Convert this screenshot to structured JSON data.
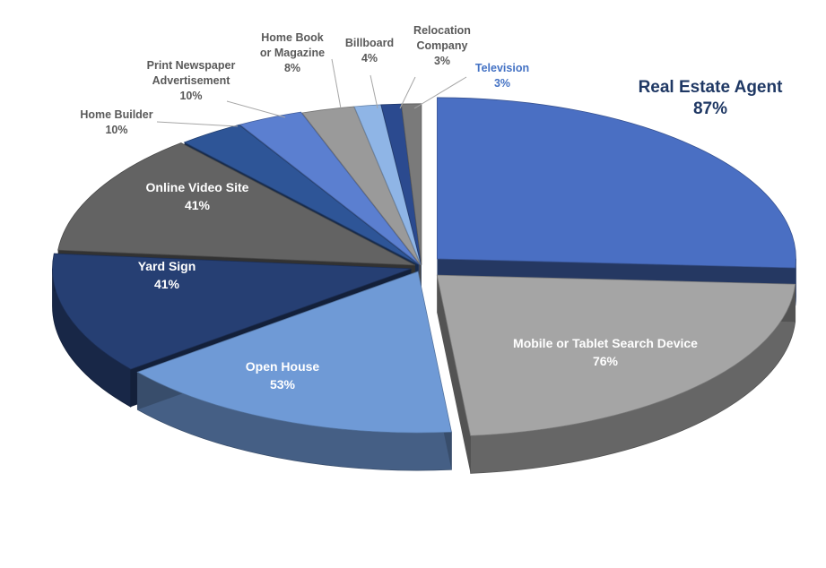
{
  "chart_data": {
    "type": "pie",
    "title": "",
    "slices": [
      {
        "label": "Real Estate Agent",
        "value": 87,
        "value_label": "87%",
        "color": "#4a6fc3"
      },
      {
        "label": "Mobile or Tablet Search Device",
        "value": 76,
        "value_label": "76%",
        "color": "#a5a5a5"
      },
      {
        "label": "Open House",
        "value": 53,
        "value_label": "53%",
        "color": "#6f9ad6"
      },
      {
        "label": "Yard Sign",
        "value": 41,
        "value_label": "41%",
        "color": "#263f73"
      },
      {
        "label": "Online Video Site",
        "value": 41,
        "value_label": "41%",
        "color": "#636363"
      },
      {
        "label": "Home Builder",
        "value": 10,
        "value_label": "10%",
        "color": "#2e5597"
      },
      {
        "label": "Print Newspaper Advertisement",
        "value": 10,
        "value_label": "10%",
        "color": "#5b7fd0"
      },
      {
        "label": "Home Book or Magazine",
        "value": 8,
        "value_label": "8%",
        "color": "#9a9a9a"
      },
      {
        "label": "Billboard",
        "value": 4,
        "value_label": "4%",
        "color": "#8fb5e6"
      },
      {
        "label": "Relocation Company",
        "value": 3,
        "value_label": "3%",
        "color": "#2b4a8f"
      },
      {
        "label": "Television",
        "value": 3,
        "value_label": "3%",
        "color": "#7a7a7a"
      }
    ]
  }
}
